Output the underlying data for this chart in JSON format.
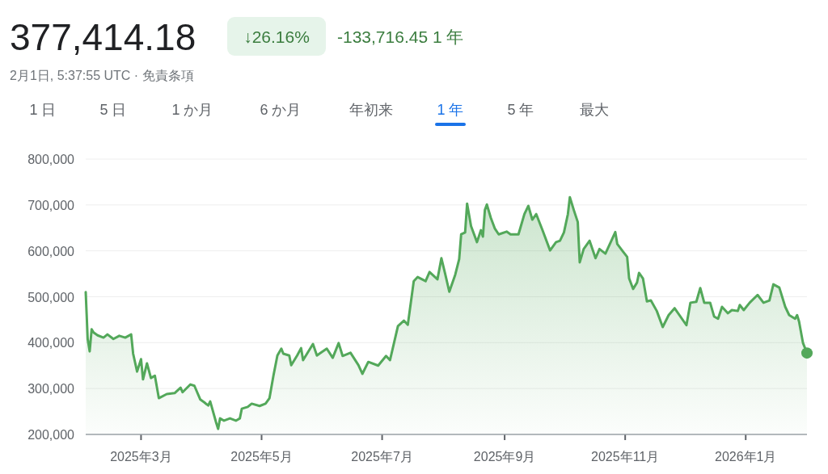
{
  "chart_data": {
    "type": "area",
    "title": "377,414.18",
    "subtitle": "2月1日, 5:37:55 UTC · 免責条項",
    "annotations": [
      "↓26.16%",
      "-133,716.45 1 年",
      "1 日",
      "5 日",
      "1 か月",
      "6 か月",
      "年初来",
      "1 年",
      "5 年",
      "最大"
    ],
    "x": [
      "2025-02-01",
      "2025-02-02",
      "2025-02-03",
      "2025-02-04",
      "2025-02-05",
      "2025-02-07",
      "2025-02-10",
      "2025-02-12",
      "2025-02-15",
      "2025-02-18",
      "2025-02-21",
      "2025-02-24",
      "2025-02-25",
      "2025-02-27",
      "2025-03-01",
      "2025-03-02",
      "2025-03-04",
      "2025-03-06",
      "2025-03-08",
      "2025-03-10",
      "2025-03-14",
      "2025-03-18",
      "2025-03-21",
      "2025-03-22",
      "2025-03-26",
      "2025-03-28",
      "2025-03-31",
      "2025-04-02",
      "2025-04-04",
      "2025-04-05",
      "2025-04-08",
      "2025-04-09",
      "2025-04-10",
      "2025-04-12",
      "2025-04-15",
      "2025-04-18",
      "2025-04-20",
      "2025-04-21",
      "2025-04-24",
      "2025-04-26",
      "2025-04-30",
      "2025-05-03",
      "2025-05-05",
      "2025-05-07",
      "2025-05-09",
      "2025-05-11",
      "2025-05-12",
      "2025-05-15",
      "2025-05-16",
      "2025-05-19",
      "2025-05-21",
      "2025-05-22",
      "2025-05-27",
      "2025-05-29",
      "2025-05-31",
      "2025-06-03",
      "2025-06-06",
      "2025-06-09",
      "2025-06-11",
      "2025-06-15",
      "2025-06-19",
      "2025-06-21",
      "2025-06-24",
      "2025-06-29",
      "2025-07-03",
      "2025-07-05",
      "2025-07-09",
      "2025-07-12",
      "2025-07-14",
      "2025-07-17",
      "2025-07-19",
      "2025-07-23",
      "2025-07-25",
      "2025-07-29",
      "2025-07-31",
      "2025-08-02",
      "2025-08-04",
      "2025-08-07",
      "2025-08-09",
      "2025-08-10",
      "2025-08-12",
      "2025-08-13",
      "2025-08-15",
      "2025-08-18",
      "2025-08-20",
      "2025-08-21",
      "2025-08-22",
      "2025-08-23",
      "2025-08-25",
      "2025-08-27",
      "2025-08-29",
      "2025-09-02",
      "2025-09-04",
      "2025-09-08",
      "2025-09-11",
      "2025-09-13",
      "2025-09-15",
      "2025-09-17",
      "2025-09-20",
      "2025-09-24",
      "2025-09-27",
      "2025-09-29",
      "2025-10-01",
      "2025-10-03",
      "2025-10-04",
      "2025-10-06",
      "2025-10-08",
      "2025-10-09",
      "2025-10-11",
      "2025-10-14",
      "2025-10-17",
      "2025-10-19",
      "2025-10-22",
      "2025-10-25",
      "2025-10-27",
      "2025-10-28",
      "2025-10-31",
      "2025-11-02",
      "2025-11-03",
      "2025-11-05",
      "2025-11-07",
      "2025-11-08",
      "2025-11-10",
      "2025-11-12",
      "2025-11-14",
      "2025-11-17",
      "2025-11-20",
      "2025-11-23",
      "2025-11-26",
      "2025-12-02",
      "2025-12-04",
      "2025-12-07",
      "2025-12-09",
      "2025-12-11",
      "2025-12-14",
      "2025-12-16",
      "2025-12-18",
      "2025-12-20",
      "2025-12-23",
      "2025-12-25",
      "2025-12-28",
      "2025-12-29",
      "2025-12-31",
      "2026-01-03",
      "2026-01-07",
      "2026-01-10",
      "2026-01-13",
      "2026-01-15",
      "2026-01-18",
      "2026-01-21",
      "2026-01-23",
      "2026-01-26",
      "2026-01-27",
      "2026-01-28",
      "2026-01-30",
      "2026-02-01"
    ],
    "series": [
      {
        "color": "#53a85a",
        "values": [
          510000,
          408000,
          381000,
          429000,
          422000,
          416000,
          411000,
          418000,
          408000,
          415000,
          411000,
          418000,
          376000,
          337000,
          364000,
          320000,
          355000,
          323000,
          328000,
          279000,
          288000,
          290000,
          302000,
          292000,
          309000,
          306000,
          276000,
          270000,
          263000,
          272000,
          226000,
          212000,
          235000,
          230000,
          235000,
          230000,
          235000,
          256000,
          260000,
          267000,
          262000,
          267000,
          279000,
          328000,
          372000,
          387000,
          376000,
          372000,
          351000,
          372000,
          388000,
          362000,
          397000,
          372000,
          378000,
          387000,
          367000,
          399000,
          371000,
          378000,
          351000,
          332000,
          358000,
          350000,
          371000,
          362000,
          436000,
          448000,
          439000,
          534000,
          543000,
          534000,
          554000,
          538000,
          584000,
          548000,
          511000,
          548000,
          582000,
          636000,
          640000,
          703000,
          654000,
          619000,
          645000,
          631000,
          689000,
          701000,
          672000,
          649000,
          636000,
          642000,
          636000,
          636000,
          680000,
          698000,
          668000,
          680000,
          647000,
          601000,
          619000,
          622000,
          640000,
          680000,
          717000,
          689000,
          663000,
          575000,
          604000,
          622000,
          584000,
          604000,
          594000,
          622000,
          641000,
          615000,
          598000,
          587000,
          540000,
          517000,
          531000,
          552000,
          540000,
          490000,
          492000,
          469000,
          434000,
          460000,
          475000,
          438000,
          487000,
          489000,
          519000,
          487000,
          487000,
          457000,
          452000,
          478000,
          464000,
          471000,
          469000,
          482000,
          471000,
          487000,
          504000,
          487000,
          492000,
          527000,
          520000,
          478000,
          460000,
          452000,
          460000,
          446000,
          399000,
          377414.18
        ]
      }
    ],
    "xlim": [
      "2025-02-01",
      "2026-02-01"
    ],
    "xticks": [
      {
        "value": "2025-03-01",
        "label": "2025年3月"
      },
      {
        "value": "2025-05-01",
        "label": "2025年5月"
      },
      {
        "value": "2025-07-01",
        "label": "2025年7月"
      },
      {
        "value": "2025-09-01",
        "label": "2025年9月"
      },
      {
        "value": "2025-11-01",
        "label": "2025年11月"
      },
      {
        "value": "2026-01-01",
        "label": "2026年1月"
      }
    ],
    "ylim": [
      200000,
      800000
    ],
    "yticks": [
      {
        "value": 200000,
        "label": "200,000"
      },
      {
        "value": 300000,
        "label": "300,000"
      },
      {
        "value": 400000,
        "label": "400,000"
      },
      {
        "value": 500000,
        "label": "500,000"
      },
      {
        "value": 600000,
        "label": "600,000"
      },
      {
        "value": 700000,
        "label": "700,000"
      },
      {
        "value": 800000,
        "label": "800,000"
      }
    ],
    "grid": "y"
  }
}
